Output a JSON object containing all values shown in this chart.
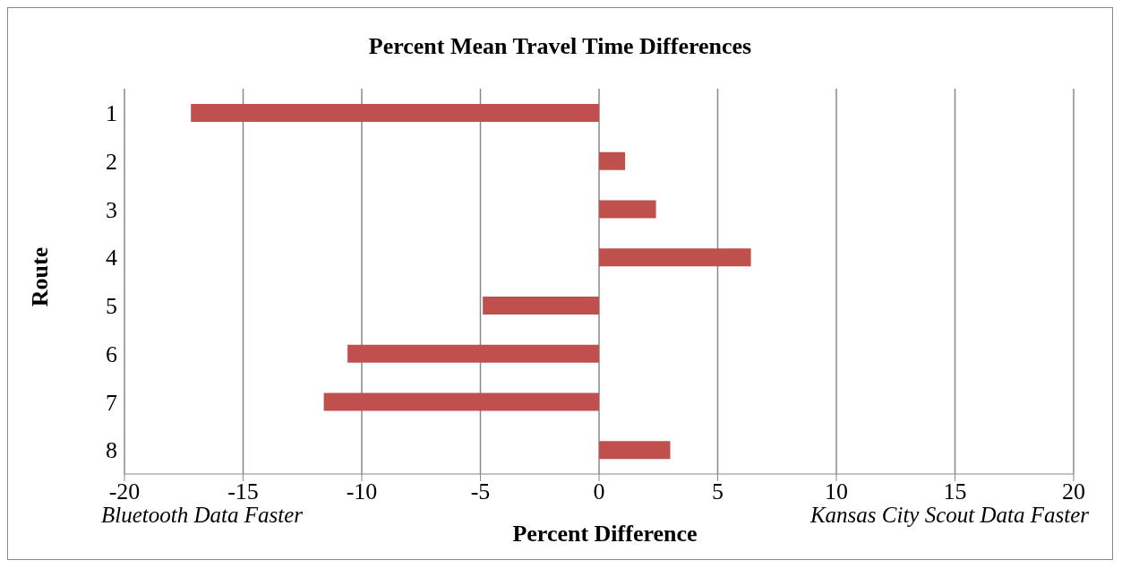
{
  "chart_data": {
    "type": "bar",
    "orientation": "horizontal",
    "title": "Percent Mean Travel Time Differences",
    "xlabel": "Percent Difference",
    "ylabel": "Route",
    "categories": [
      "1",
      "2",
      "3",
      "4",
      "5",
      "6",
      "7",
      "8"
    ],
    "values": [
      -17.2,
      1.1,
      2.4,
      6.4,
      -4.9,
      -10.6,
      -11.6,
      3.0
    ],
    "color": "#c0504d",
    "xlim": [
      -20,
      20
    ],
    "xticks": [
      -20,
      -15,
      -10,
      -5,
      0,
      5,
      10,
      15,
      20
    ],
    "grid": "x",
    "legend": false,
    "annotations": [
      "Bluetooth Data Faster",
      "Kansas City Scout Data Faster"
    ]
  }
}
